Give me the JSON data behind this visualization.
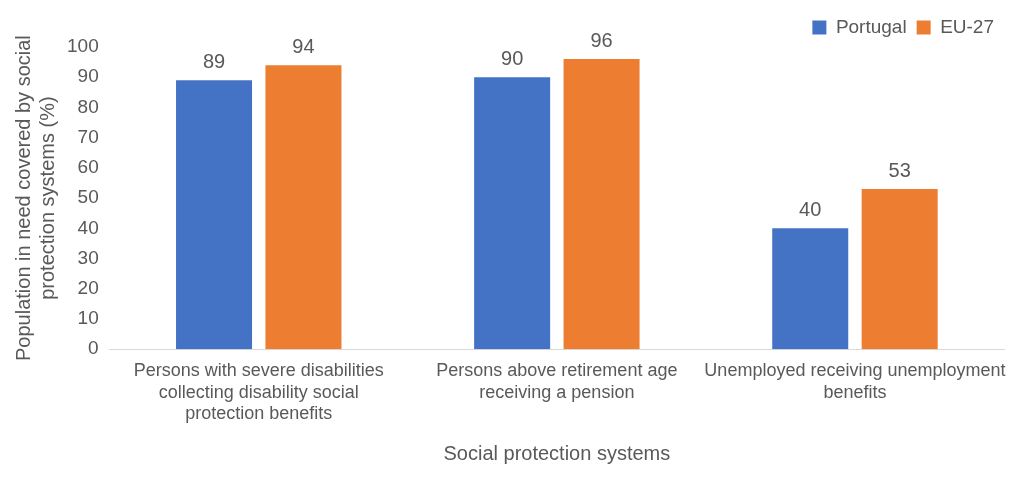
{
  "chart_data": {
    "type": "bar",
    "xlabel": "Social protection systems",
    "ylabel": "Population in need covered by social protection systems (%)",
    "categories": [
      "Persons with severe disabilities collecting disability social protection benefits",
      "Persons above retirement age receiving a pension",
      "Unemployed receiving unemployment benefits"
    ],
    "series": [
      {
        "name": "Portugal",
        "color": "#4472c4",
        "values": [
          89,
          90,
          40
        ]
      },
      {
        "name": "EU-27",
        "color": "#ed7d31",
        "values": [
          94,
          96,
          53
        ]
      }
    ],
    "ylim": [
      0,
      100
    ],
    "yticks": [
      0,
      10,
      20,
      30,
      40,
      50,
      60,
      70,
      80,
      90,
      100
    ],
    "grid": false,
    "legend": "top right",
    "data_labels": true
  }
}
